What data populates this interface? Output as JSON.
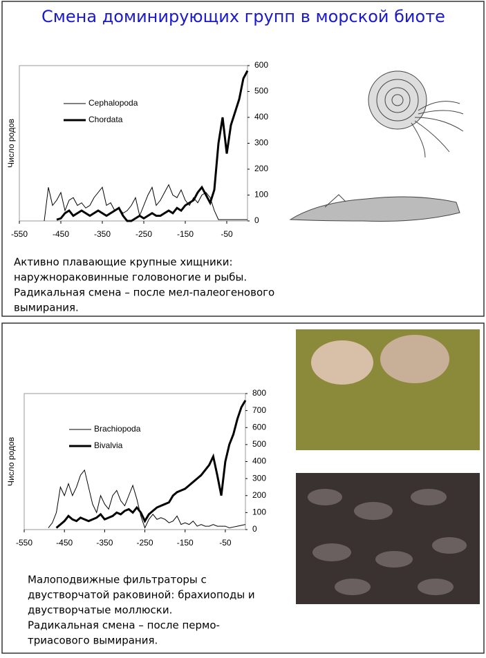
{
  "title": "Смена доминирующих групп в морской биоте",
  "chart_data": [
    {
      "type": "line",
      "ylabel": "Число родов",
      "x": [
        -490,
        -480,
        -470,
        -460,
        -450,
        -440,
        -430,
        -420,
        -410,
        -400,
        -390,
        -380,
        -370,
        -360,
        -350,
        -340,
        -330,
        -320,
        -310,
        -300,
        -290,
        -280,
        -270,
        -260,
        -250,
        -240,
        -230,
        -220,
        -210,
        -200,
        -190,
        -180,
        -170,
        -160,
        -150,
        -140,
        -130,
        -120,
        -110,
        -100,
        -90,
        -80,
        -70,
        -60,
        -50,
        -40,
        -30,
        -20,
        -10,
        0
      ],
      "series": [
        {
          "name": "Cephalopoda",
          "color": "#000000",
          "width": 1,
          "values": [
            0,
            130,
            60,
            80,
            110,
            40,
            80,
            90,
            60,
            70,
            50,
            60,
            90,
            110,
            130,
            60,
            70,
            40,
            50,
            30,
            40,
            60,
            90,
            20,
            60,
            100,
            130,
            60,
            80,
            110,
            140,
            100,
            90,
            120,
            80,
            60,
            90,
            70,
            100,
            110,
            90,
            40,
            5,
            5,
            5,
            5,
            5,
            5,
            5,
            5
          ]
        },
        {
          "name": "Chordata",
          "color": "#000000",
          "width": 3,
          "values": [
            null,
            null,
            null,
            5,
            10,
            30,
            40,
            20,
            30,
            40,
            30,
            20,
            30,
            40,
            30,
            20,
            30,
            40,
            50,
            20,
            0,
            0,
            10,
            20,
            10,
            20,
            30,
            20,
            20,
            30,
            40,
            30,
            50,
            40,
            60,
            70,
            80,
            110,
            130,
            100,
            70,
            120,
            300,
            400,
            260,
            370,
            420,
            470,
            550,
            580
          ]
        }
      ],
      "xlim": [
        -550,
        0
      ],
      "xticks": [
        -550,
        -450,
        -350,
        -250,
        -150,
        -50
      ],
      "ylim": [
        0,
        600
      ],
      "yticks": [
        0,
        100,
        200,
        300,
        400,
        500,
        600
      ]
    },
    {
      "type": "line",
      "ylabel": "Число родов",
      "x": [
        -490,
        -480,
        -470,
        -460,
        -450,
        -440,
        -430,
        -420,
        -410,
        -400,
        -390,
        -380,
        -370,
        -360,
        -350,
        -340,
        -330,
        -320,
        -310,
        -300,
        -290,
        -280,
        -270,
        -260,
        -250,
        -240,
        -230,
        -220,
        -210,
        -200,
        -190,
        -180,
        -170,
        -160,
        -150,
        -140,
        -130,
        -120,
        -110,
        -100,
        -90,
        -80,
        -70,
        -60,
        -50,
        -40,
        -30,
        -20,
        -10,
        0
      ],
      "series": [
        {
          "name": "Brachiopoda",
          "color": "#000000",
          "width": 1,
          "values": [
            10,
            40,
            100,
            250,
            200,
            270,
            200,
            250,
            320,
            350,
            250,
            150,
            100,
            200,
            150,
            120,
            200,
            230,
            170,
            140,
            200,
            260,
            180,
            80,
            10,
            60,
            90,
            60,
            70,
            60,
            40,
            50,
            80,
            30,
            40,
            30,
            50,
            20,
            30,
            20,
            20,
            30,
            20,
            20,
            20,
            10,
            15,
            20,
            25,
            30
          ]
        },
        {
          "name": "Bivalvia",
          "color": "#000000",
          "width": 3,
          "values": [
            null,
            null,
            10,
            30,
            50,
            80,
            60,
            50,
            70,
            60,
            50,
            60,
            70,
            90,
            60,
            70,
            80,
            100,
            90,
            110,
            120,
            100,
            130,
            100,
            50,
            90,
            110,
            130,
            140,
            150,
            160,
            200,
            220,
            230,
            240,
            260,
            280,
            300,
            320,
            350,
            380,
            430,
            320,
            200,
            400,
            500,
            560,
            650,
            720,
            760
          ]
        }
      ],
      "xlim": [
        -550,
        0
      ],
      "xticks": [
        -550,
        -450,
        -350,
        -250,
        -150,
        -50
      ],
      "ylim": [
        0,
        800
      ],
      "yticks": [
        0,
        100,
        200,
        300,
        400,
        500,
        600,
        700,
        800
      ]
    }
  ],
  "captions": [
    [
      "Активно плавающие крупные хищники:",
      "наружнораковинные головоногие и рыбы.",
      "Радикальная смена – после мел-палеогенового",
      "вымирания."
    ],
    [
      "Малоподвижные фильтраторы с",
      "двустворчатой раковиной: брахиоподы и",
      "двустворчатые моллюски.",
      "Радикальная смена – после пермо-",
      "триасового вымирания."
    ]
  ]
}
